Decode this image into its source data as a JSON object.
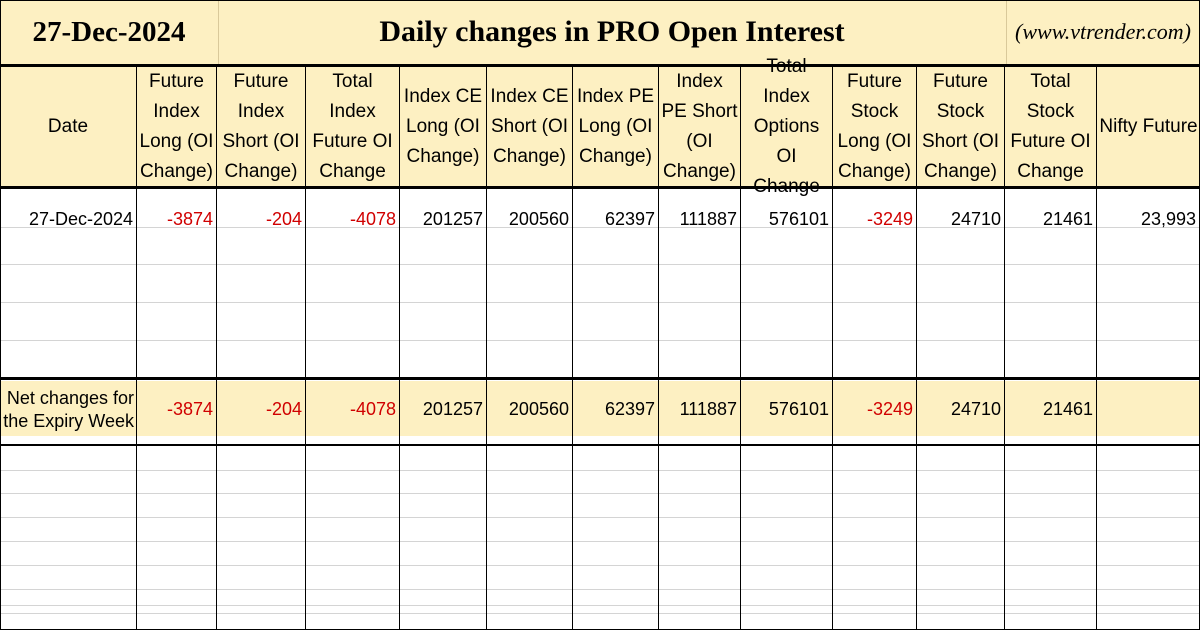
{
  "header": {
    "date": "27-Dec-2024",
    "title": "Daily changes in PRO Open Interest",
    "site": "(www.vtrender.com)"
  },
  "columns": [
    "Date",
    "Future Index Long (OI Change)",
    "Future Index Short (OI Change)",
    "Total Index Future OI Change",
    "Index CE Long (OI Change)",
    "Index CE Short (OI Change)",
    "Index PE Long (OI Change)",
    "Index PE Short (OI Change)",
    "Total Index Options OI Change",
    "Future Stock Long (OI Change)",
    "Future Stock Short (OI Change)",
    "Total Stock Future OI Change",
    "Nifty Future"
  ],
  "rows": [
    {
      "date": "27-Dec-2024",
      "values": [
        "-3874",
        "-204",
        "-4078",
        "201257",
        "200560",
        "62397",
        "111887",
        "576101",
        "-3249",
        "24710",
        "21461",
        "23,993"
      ]
    }
  ],
  "net": {
    "label_line1": "Net changes for",
    "label_line2": "the Expiry Week",
    "values": [
      "-3874",
      "-204",
      "-4078",
      "201257",
      "200560",
      "62397",
      "111887",
      "576101",
      "-3249",
      "24710",
      "21461",
      ""
    ]
  },
  "colors": {
    "header_bg": "#fdf0c2",
    "negative": "#d00000",
    "grid_light": "#d4d4d4"
  }
}
